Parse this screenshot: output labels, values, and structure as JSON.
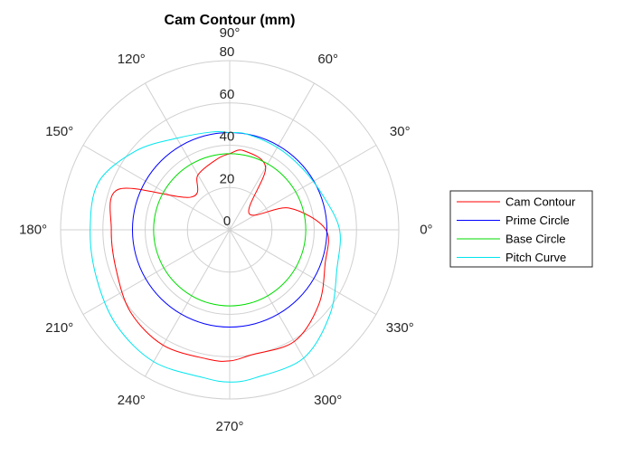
{
  "chart_data": {
    "type": "polar-line",
    "title": "Cam Contour (mm)",
    "rlim": [
      0,
      80
    ],
    "r_ticks": [
      "0",
      "20",
      "40",
      "60",
      "80"
    ],
    "r_tick_values": [
      0,
      20,
      40,
      60,
      80
    ],
    "theta_ticks": [
      "0°",
      "30°",
      "60°",
      "90°",
      "120°",
      "150°",
      "180°",
      "210°",
      "240°",
      "270°",
      "300°",
      "330°"
    ],
    "theta_tick_values": [
      0,
      30,
      60,
      90,
      120,
      150,
      180,
      210,
      240,
      270,
      300,
      330
    ],
    "grid": true,
    "legend_position": "right",
    "angle_unit": "deg",
    "series": [
      {
        "name": "Cam Contour",
        "color": "#ff0000",
        "theta": [
          0,
          20,
          40,
          60,
          80,
          90,
          100,
          120,
          140,
          160,
          180,
          200,
          220,
          240,
          260,
          270,
          280,
          300,
          320,
          340,
          360
        ],
        "r": [
          45.5,
          30,
          12,
          34,
          38,
          36,
          34,
          30,
          24,
          56,
          56,
          57,
          61,
          63,
          62,
          62,
          60,
          61,
          55,
          48,
          45.5
        ]
      },
      {
        "name": "Prime Circle",
        "color": "#0000ff",
        "theta": [
          0,
          15,
          30,
          45,
          60,
          75,
          90,
          105,
          120,
          135,
          150,
          165,
          180,
          195,
          210,
          225,
          240,
          255,
          270,
          285,
          300,
          315,
          330,
          345,
          360
        ],
        "r": [
          46,
          46,
          46,
          46,
          46,
          46,
          46,
          46,
          46,
          46,
          46,
          46,
          46,
          46,
          46,
          46,
          46,
          46,
          46,
          46,
          46,
          46,
          46,
          46,
          46
        ]
      },
      {
        "name": "Base Circle",
        "color": "#00dd00",
        "theta": [
          0,
          15,
          30,
          45,
          60,
          75,
          90,
          105,
          120,
          135,
          150,
          165,
          180,
          195,
          210,
          225,
          240,
          255,
          270,
          285,
          300,
          315,
          330,
          345,
          360
        ],
        "r": [
          36,
          36,
          36,
          36,
          36,
          36,
          36,
          36,
          36,
          36,
          36,
          36,
          36,
          36,
          36,
          36,
          36,
          36,
          36,
          36,
          36,
          36,
          36,
          36,
          36
        ]
      },
      {
        "name": "Pitch Curve",
        "color": "#00e5ee",
        "theta": [
          0,
          20,
          40,
          60,
          80,
          90,
          100,
          120,
          140,
          160,
          180,
          200,
          220,
          240,
          260,
          270,
          280,
          300,
          320,
          340,
          360
        ],
        "r": [
          52,
          47,
          45,
          45,
          46,
          46,
          47,
          50,
          58,
          66,
          66,
          67,
          70,
          72,
          71,
          72,
          71,
          70,
          62,
          54,
          52
        ]
      }
    ]
  }
}
